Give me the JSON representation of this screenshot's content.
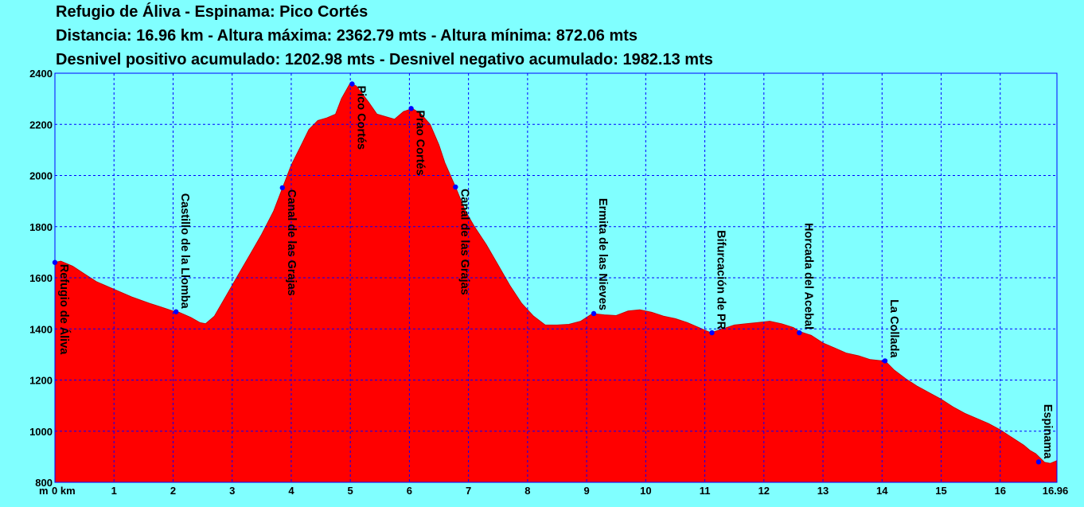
{
  "header": {
    "title": "Refugio de Áliva - Espinama:  Pico Cortés",
    "line2": "Distancia: 16.96 km - Altura máxima: 2362.79 mts - Altura mínima: 872.06 mts",
    "line3": "Desnivel positivo acumulado: 1202.98 mts - Desnivel negativo acumulado: 1982.13 mts"
  },
  "colors": {
    "background": "#80ffff",
    "fill": "#ff0000",
    "grid": "#0000ff",
    "marker": "#0000ff"
  },
  "chart_data": {
    "type": "area",
    "xunit": "km",
    "yunit": "m",
    "xlim": [
      0,
      16.96
    ],
    "ylim": [
      800,
      2400
    ],
    "x_ticks": [
      0,
      1,
      2,
      3,
      4,
      5,
      6,
      7,
      8,
      9,
      10,
      11,
      12,
      13,
      14,
      15,
      16,
      16.96
    ],
    "x_tick_labels": [
      "0 km",
      "1",
      "2",
      "3",
      "4",
      "5",
      "6",
      "7",
      "8",
      "9",
      "10",
      "11",
      "12",
      "13",
      "14",
      "15",
      "16",
      "16.96"
    ],
    "y_ticks": [
      800,
      1000,
      1200,
      1400,
      1600,
      1800,
      2000,
      2200,
      2400
    ],
    "y_unit_label": "m",
    "grid": true,
    "profile": [
      [
        0,
        1660
      ],
      [
        0.1,
        1665
      ],
      [
        0.3,
        1645
      ],
      [
        0.5,
        1615
      ],
      [
        0.7,
        1585
      ],
      [
        1.0,
        1555
      ],
      [
        1.3,
        1525
      ],
      [
        1.6,
        1500
      ],
      [
        1.8,
        1485
      ],
      [
        2.0,
        1470
      ],
      [
        2.1,
        1465
      ],
      [
        2.3,
        1445
      ],
      [
        2.45,
        1425
      ],
      [
        2.55,
        1420
      ],
      [
        2.7,
        1450
      ],
      [
        2.9,
        1530
      ],
      [
        3.1,
        1610
      ],
      [
        3.3,
        1690
      ],
      [
        3.5,
        1770
      ],
      [
        3.7,
        1860
      ],
      [
        3.85,
        1950
      ],
      [
        4.0,
        2040
      ],
      [
        4.15,
        2110
      ],
      [
        4.3,
        2180
      ],
      [
        4.45,
        2215
      ],
      [
        4.6,
        2225
      ],
      [
        4.75,
        2240
      ],
      [
        4.85,
        2300
      ],
      [
        5.0,
        2362
      ],
      [
        5.1,
        2350
      ],
      [
        5.3,
        2290
      ],
      [
        5.45,
        2240
      ],
      [
        5.6,
        2230
      ],
      [
        5.75,
        2220
      ],
      [
        5.9,
        2250
      ],
      [
        6.05,
        2262
      ],
      [
        6.2,
        2240
      ],
      [
        6.35,
        2200
      ],
      [
        6.5,
        2120
      ],
      [
        6.6,
        2050
      ],
      [
        6.78,
        1955
      ],
      [
        6.95,
        1860
      ],
      [
        7.1,
        1800
      ],
      [
        7.3,
        1730
      ],
      [
        7.5,
        1650
      ],
      [
        7.7,
        1570
      ],
      [
        7.9,
        1500
      ],
      [
        8.1,
        1450
      ],
      [
        8.3,
        1415
      ],
      [
        8.5,
        1415
      ],
      [
        8.7,
        1418
      ],
      [
        8.9,
        1430
      ],
      [
        9.1,
        1460
      ],
      [
        9.3,
        1455
      ],
      [
        9.5,
        1452
      ],
      [
        9.7,
        1470
      ],
      [
        9.9,
        1475
      ],
      [
        10.1,
        1465
      ],
      [
        10.3,
        1450
      ],
      [
        10.5,
        1440
      ],
      [
        10.7,
        1425
      ],
      [
        10.9,
        1405
      ],
      [
        11.1,
        1385
      ],
      [
        11.3,
        1400
      ],
      [
        11.5,
        1415
      ],
      [
        11.7,
        1420
      ],
      [
        11.9,
        1425
      ],
      [
        12.1,
        1430
      ],
      [
        12.3,
        1420
      ],
      [
        12.5,
        1405
      ],
      [
        12.6,
        1390
      ],
      [
        12.8,
        1375
      ],
      [
        13.0,
        1345
      ],
      [
        13.2,
        1325
      ],
      [
        13.4,
        1305
      ],
      [
        13.6,
        1295
      ],
      [
        13.8,
        1280
      ],
      [
        14.0,
        1275
      ],
      [
        14.05,
        1275
      ],
      [
        14.2,
        1240
      ],
      [
        14.4,
        1205
      ],
      [
        14.6,
        1175
      ],
      [
        14.8,
        1150
      ],
      [
        15.0,
        1125
      ],
      [
        15.2,
        1095
      ],
      [
        15.4,
        1070
      ],
      [
        15.6,
        1050
      ],
      [
        15.8,
        1030
      ],
      [
        16.0,
        1005
      ],
      [
        16.2,
        975
      ],
      [
        16.4,
        945
      ],
      [
        16.5,
        925
      ],
      [
        16.6,
        912
      ],
      [
        16.75,
        878
      ],
      [
        16.85,
        874
      ],
      [
        16.96,
        885
      ]
    ],
    "waypoints": [
      {
        "km": 0.0,
        "alt": 1660,
        "name": "Refugio de Áliva",
        "side": "below"
      },
      {
        "km": 2.05,
        "alt": 1467,
        "name": "Castillo de la Llomba",
        "side": "above"
      },
      {
        "km": 3.85,
        "alt": 1952,
        "name": "Canal de las Grajas",
        "side": "below"
      },
      {
        "km": 5.03,
        "alt": 2358,
        "name": "Pico Cortés",
        "side": "below"
      },
      {
        "km": 6.03,
        "alt": 2262,
        "name": "Prao Cortés",
        "side": "below"
      },
      {
        "km": 6.78,
        "alt": 1955,
        "name": "Canal de las Grajas",
        "side": "below"
      },
      {
        "km": 9.12,
        "alt": 1460,
        "name": "Ermita de las Nieves",
        "side": "above"
      },
      {
        "km": 11.12,
        "alt": 1385,
        "name": "Bifurcación de PR",
        "side": "above"
      },
      {
        "km": 12.6,
        "alt": 1385,
        "name": "Horcada del Acebal",
        "side": "above"
      },
      {
        "km": 14.05,
        "alt": 1275,
        "name": "La Collada",
        "side": "above"
      },
      {
        "km": 16.65,
        "alt": 880,
        "name": "Espinama",
        "side": "above"
      }
    ]
  }
}
